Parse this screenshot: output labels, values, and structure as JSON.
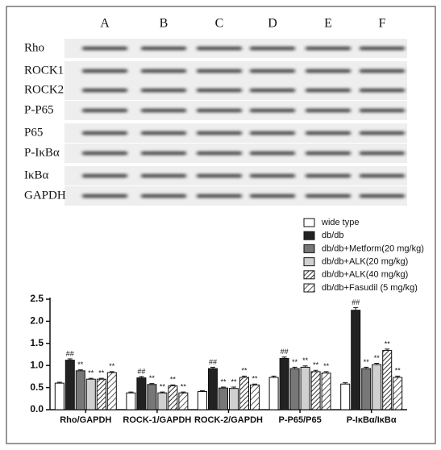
{
  "blot": {
    "lanes": [
      "A",
      "B",
      "C",
      "D",
      "E",
      "F"
    ],
    "rows": [
      "Rho",
      "ROCK1",
      "ROCK2",
      "P-P65",
      "P65",
      "P-IκBα",
      "IκBα",
      "GAPDH"
    ]
  },
  "chart_data": {
    "type": "bar",
    "categories": [
      "Rho/GAPDH",
      "ROCK-1/GAPDH",
      "ROCK-2/GAPDH",
      "P-P65/P65",
      "P-IκBα/IκBα"
    ],
    "series": [
      {
        "name": "wide type",
        "color": "#ffffff",
        "values": [
          0.6,
          0.38,
          0.41,
          0.73,
          0.58
        ],
        "errors": [
          0.02,
          0.02,
          0.02,
          0.03,
          0.03
        ]
      },
      {
        "name": "db/db",
        "color": "#222222",
        "annotation": "##",
        "values": [
          1.12,
          0.72,
          0.93,
          1.16,
          2.25
        ],
        "errors": [
          0.03,
          0.03,
          0.03,
          0.03,
          0.06
        ]
      },
      {
        "name": "db/db+Metform(20 mg/kg)",
        "color": "#777777",
        "annotation": "**",
        "values": [
          0.88,
          0.57,
          0.49,
          0.93,
          0.93
        ],
        "errors": [
          0.02,
          0.02,
          0.02,
          0.03,
          0.03
        ]
      },
      {
        "name": "db/db+ALK(20 mg/kg)",
        "color": "#d0d0d0",
        "annotation": "**",
        "values": [
          0.69,
          0.38,
          0.48,
          0.96,
          1.02
        ],
        "errors": [
          0.02,
          0.02,
          0.03,
          0.03,
          0.03
        ]
      },
      {
        "name": "db/db+ALK(40 mg/kg)",
        "color": "#333333",
        "hatch": true,
        "annotation": "**",
        "values": [
          0.69,
          0.54,
          0.73,
          0.86,
          1.34
        ],
        "errors": [
          0.02,
          0.02,
          0.03,
          0.03,
          0.03
        ]
      },
      {
        "name": "db/db+Fasudil (5 mg/kg)",
        "color": "#555555",
        "hatch": true,
        "annotation": "**",
        "values": [
          0.84,
          0.38,
          0.56,
          0.83,
          0.73
        ],
        "errors": [
          0.02,
          0.02,
          0.02,
          0.03,
          0.03
        ]
      }
    ],
    "ylim": [
      0,
      2.5
    ],
    "yticks": [
      {
        "value": 0,
        "label": "0.0"
      },
      0.5,
      {
        "value": 1,
        "label": "1.0"
      },
      1.5,
      {
        "value": 2,
        "label": "2.0"
      },
      2.5
    ]
  }
}
